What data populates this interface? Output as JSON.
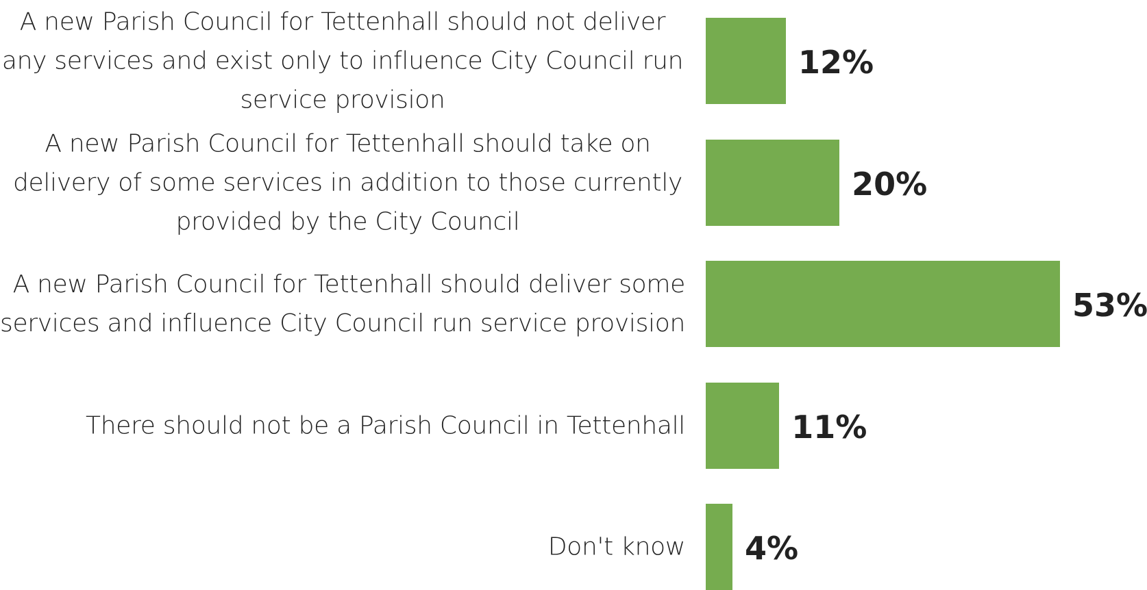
{
  "chart_data": {
    "type": "bar",
    "orientation": "horizontal",
    "categories": [
      "A new Parish Council for Tettenhall should not deliver any services and exist only to influence City Council run service provision",
      "A new Parish Council for Tettenhall should take on delivery of some services in addition to those currently provided by the City Council",
      "A new Parish Council for Tettenhall should deliver some services and influence City Council run service provision",
      "There should not be a Parish Council in Tettenhall",
      "Don't know"
    ],
    "values": [
      12,
      20,
      53,
      11,
      4
    ],
    "value_labels": [
      "12%",
      "20%",
      "53%",
      "11%",
      "4%"
    ],
    "value_unit": "%",
    "title": "",
    "xlabel": "",
    "ylabel": "",
    "xlim": [
      0,
      53
    ],
    "grid": false,
    "legend": "none",
    "colors": {
      "bar": "#76AC4F",
      "text": "#222222"
    }
  }
}
